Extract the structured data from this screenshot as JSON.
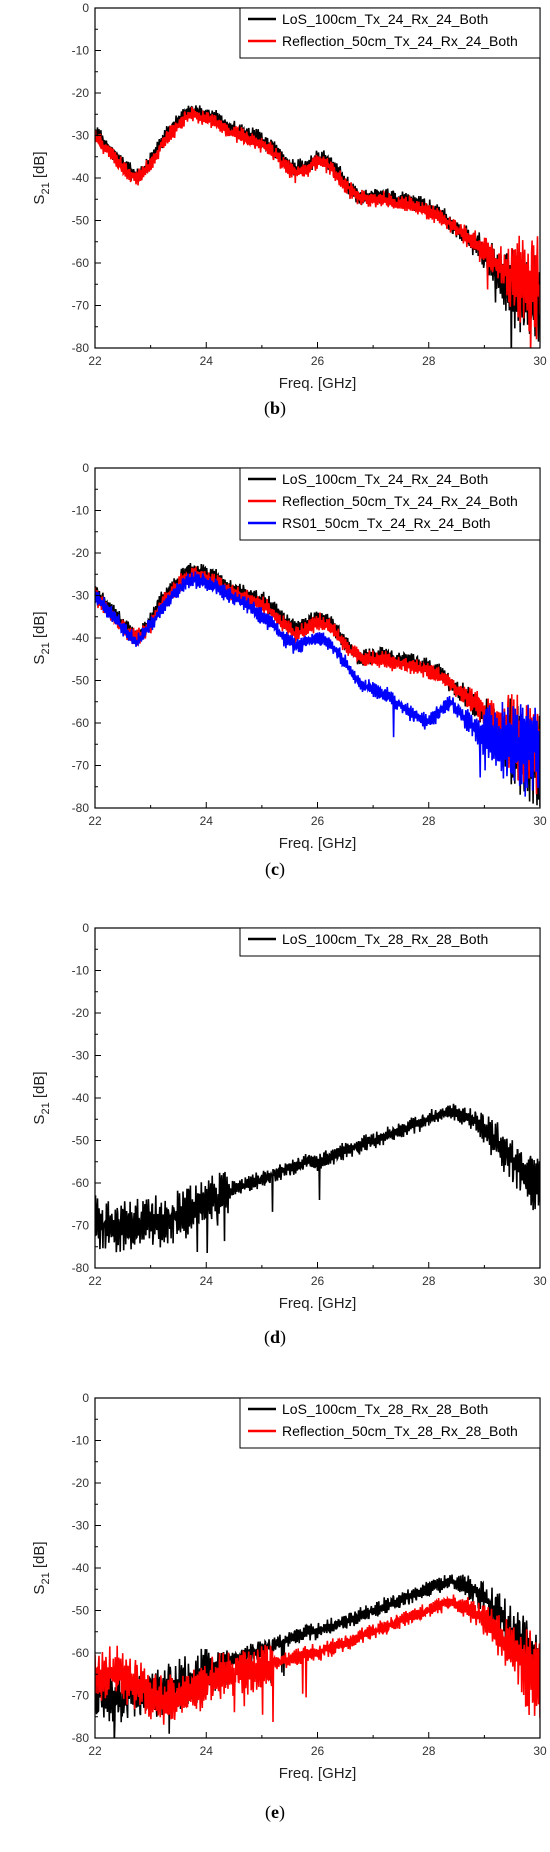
{
  "chart_data": [
    {
      "type": "line",
      "panel_label": "b",
      "xlabel": "Freq. [GHz]",
      "ylabel": "S21 [dB]",
      "ylabel_main": "S",
      "ylabel_sub": "21",
      "ylabel_unit": " [dB]",
      "xlim": [
        22,
        30
      ],
      "ylim": [
        -80,
        0
      ],
      "xticks": [
        22,
        24,
        26,
        28,
        30
      ],
      "yticks": [
        0,
        -10,
        -20,
        -30,
        -40,
        -50,
        -60,
        -70,
        -80
      ],
      "grid": false,
      "legend_position": "top-right",
      "series": [
        {
          "name": "LoS_100cm_Tx_24_Rx_24_Both",
          "color": "#000000",
          "x": [
            22.0,
            22.2,
            22.4,
            22.6,
            22.75,
            23.0,
            23.2,
            23.4,
            23.6,
            23.75,
            24.0,
            24.2,
            24.4,
            24.6,
            24.8,
            25.0,
            25.2,
            25.4,
            25.6,
            25.8,
            26.0,
            26.2,
            26.4,
            26.6,
            26.8,
            27.0,
            27.2,
            27.4,
            27.6,
            27.8,
            28.0,
            28.2,
            28.4,
            28.6,
            28.8,
            29.0,
            29.2,
            29.4,
            29.6,
            29.8,
            30.0
          ],
          "y": [
            -29,
            -32,
            -35,
            -38,
            -40,
            -36,
            -31,
            -28,
            -25,
            -24,
            -25,
            -26,
            -28,
            -29,
            -30,
            -31,
            -33,
            -36,
            -38,
            -37,
            -35,
            -36,
            -39,
            -43,
            -45,
            -44,
            -44,
            -45,
            -45,
            -46,
            -47,
            -48,
            -51,
            -53,
            -55,
            -58,
            -61,
            -64,
            -66,
            -68,
            -70
          ]
        },
        {
          "name": "Reflection_50cm_Tx_24_Rx_24_Both",
          "color": "#ff0000",
          "x": [
            22.0,
            22.2,
            22.4,
            22.6,
            22.75,
            23.0,
            23.2,
            23.4,
            23.6,
            23.75,
            24.0,
            24.2,
            24.4,
            24.6,
            24.8,
            25.0,
            25.2,
            25.4,
            25.6,
            25.8,
            26.0,
            26.2,
            26.4,
            26.6,
            26.8,
            27.0,
            27.2,
            27.4,
            27.6,
            27.8,
            28.0,
            28.2,
            28.4,
            28.6,
            28.8,
            29.0,
            29.2,
            29.4,
            29.6,
            29.8,
            30.0
          ],
          "y": [
            -30,
            -33,
            -36,
            -39,
            -40,
            -37,
            -32,
            -29,
            -26,
            -25,
            -26,
            -27,
            -29,
            -30,
            -31,
            -32,
            -34,
            -37,
            -39,
            -38,
            -36,
            -37,
            -40,
            -43,
            -45,
            -45,
            -45,
            -46,
            -46,
            -47,
            -48,
            -49,
            -51,
            -53,
            -55,
            -57,
            -60,
            -62,
            -64,
            -65,
            -66
          ]
        }
      ]
    },
    {
      "type": "line",
      "panel_label": "c",
      "xlabel": "Freq. [GHz]",
      "ylabel": "S21 [dB]",
      "ylabel_main": "S",
      "ylabel_sub": "21",
      "ylabel_unit": " [dB]",
      "xlim": [
        22,
        30
      ],
      "ylim": [
        -80,
        0
      ],
      "xticks": [
        22,
        24,
        26,
        28,
        30
      ],
      "yticks": [
        0,
        -10,
        -20,
        -30,
        -40,
        -50,
        -60,
        -70,
        -80
      ],
      "grid": false,
      "legend_position": "top-right",
      "series": [
        {
          "name": "LoS_100cm_Tx_24_Rx_24_Both",
          "color": "#000000",
          "x": [
            22.0,
            22.2,
            22.4,
            22.6,
            22.75,
            23.0,
            23.2,
            23.4,
            23.6,
            23.75,
            24.0,
            24.2,
            24.4,
            24.6,
            24.8,
            25.0,
            25.2,
            25.4,
            25.6,
            25.8,
            26.0,
            26.2,
            26.4,
            26.6,
            26.8,
            27.0,
            27.2,
            27.4,
            27.6,
            27.8,
            28.0,
            28.2,
            28.4,
            28.6,
            28.8,
            29.0,
            29.2,
            29.4,
            29.6,
            29.8,
            30.0
          ],
          "y": [
            -29,
            -32,
            -35,
            -38,
            -40,
            -36,
            -31,
            -28,
            -25,
            -24,
            -25,
            -26,
            -28,
            -29,
            -30,
            -31,
            -33,
            -36,
            -38,
            -37,
            -35,
            -36,
            -39,
            -43,
            -45,
            -44,
            -44,
            -45,
            -45,
            -46,
            -47,
            -48,
            -51,
            -53,
            -55,
            -58,
            -61,
            -64,
            -66,
            -68,
            -70
          ]
        },
        {
          "name": "Reflection_50cm_Tx_24_Rx_24_Both",
          "color": "#ff0000",
          "x": [
            22.0,
            22.2,
            22.4,
            22.6,
            22.75,
            23.0,
            23.2,
            23.4,
            23.6,
            23.75,
            24.0,
            24.2,
            24.4,
            24.6,
            24.8,
            25.0,
            25.2,
            25.4,
            25.6,
            25.8,
            26.0,
            26.2,
            26.4,
            26.6,
            26.8,
            27.0,
            27.2,
            27.4,
            27.6,
            27.8,
            28.0,
            28.2,
            28.4,
            28.6,
            28.8,
            29.0,
            29.2,
            29.4,
            29.6,
            29.8,
            30.0
          ],
          "y": [
            -30,
            -33,
            -36,
            -39,
            -40,
            -37,
            -32,
            -29,
            -26,
            -25,
            -26,
            -27,
            -29,
            -30,
            -31,
            -32,
            -34,
            -37,
            -39,
            -38,
            -36,
            -37,
            -40,
            -43,
            -45,
            -45,
            -45,
            -46,
            -46,
            -47,
            -48,
            -49,
            -51,
            -53,
            -55,
            -57,
            -60,
            -62,
            -64,
            -65,
            -66
          ]
        },
        {
          "name": "RS01_50cm_Tx_24_Rx_24_Both",
          "color": "#0000ff",
          "x": [
            22.0,
            22.2,
            22.4,
            22.6,
            22.75,
            23.0,
            23.2,
            23.4,
            23.6,
            23.75,
            24.0,
            24.2,
            24.4,
            24.6,
            24.8,
            25.0,
            25.2,
            25.4,
            25.6,
            25.8,
            26.0,
            26.2,
            26.4,
            26.6,
            26.8,
            27.0,
            27.2,
            27.4,
            27.6,
            27.8,
            28.0,
            28.2,
            28.4,
            28.6,
            28.8,
            29.0,
            29.2,
            29.4,
            29.6,
            29.8,
            30.0
          ],
          "y": [
            -30,
            -33,
            -36,
            -39,
            -41,
            -37,
            -33,
            -30,
            -27,
            -26,
            -27,
            -28,
            -30,
            -31,
            -33,
            -35,
            -37,
            -40,
            -42,
            -41,
            -40,
            -41,
            -44,
            -48,
            -51,
            -52,
            -53,
            -55,
            -57,
            -59,
            -60,
            -57,
            -55,
            -58,
            -61,
            -63,
            -64,
            -65,
            -66,
            -66,
            -66
          ]
        }
      ]
    },
    {
      "type": "line",
      "panel_label": "d",
      "xlabel": "Freq. [GHz]",
      "ylabel": "S21 [dB]",
      "ylabel_main": "S",
      "ylabel_sub": "21",
      "ylabel_unit": " [dB]",
      "xlim": [
        22,
        30
      ],
      "ylim": [
        -80,
        0
      ],
      "xticks": [
        22,
        24,
        26,
        28,
        30
      ],
      "yticks": [
        0,
        -10,
        -20,
        -30,
        -40,
        -50,
        -60,
        -70,
        -80
      ],
      "grid": false,
      "legend_position": "top-right",
      "series": [
        {
          "name": "LoS_100cm_Tx_28_Rx_28_Both",
          "color": "#000000",
          "x": [
            22.0,
            22.2,
            22.4,
            22.6,
            22.8,
            23.0,
            23.2,
            23.4,
            23.6,
            23.8,
            24.0,
            24.2,
            24.4,
            24.6,
            24.8,
            25.0,
            25.2,
            25.4,
            25.6,
            25.8,
            26.0,
            26.2,
            26.4,
            26.6,
            26.8,
            27.0,
            27.2,
            27.4,
            27.6,
            27.8,
            28.0,
            28.2,
            28.4,
            28.6,
            28.8,
            29.0,
            29.2,
            29.4,
            29.6,
            29.8,
            30.0
          ],
          "y": [
            -69,
            -70,
            -71,
            -70,
            -70,
            -69,
            -69,
            -68,
            -67,
            -66,
            -64,
            -63,
            -62,
            -61,
            -60,
            -59,
            -58,
            -57,
            -56,
            -55,
            -55,
            -54,
            -53,
            -52,
            -51,
            -50,
            -49,
            -48,
            -47,
            -46,
            -45,
            -44,
            -43,
            -44,
            -45,
            -47,
            -50,
            -53,
            -56,
            -59,
            -62
          ]
        }
      ]
    },
    {
      "type": "line",
      "panel_label": "e",
      "xlabel": "Freq. [GHz]",
      "ylabel": "S21 [dB]",
      "ylabel_main": "S",
      "ylabel_sub": "21",
      "ylabel_unit": " [dB]",
      "xlim": [
        22,
        30
      ],
      "ylim": [
        -80,
        0
      ],
      "xticks": [
        22,
        24,
        26,
        28,
        30
      ],
      "yticks": [
        0,
        -10,
        -20,
        -30,
        -40,
        -50,
        -60,
        -70,
        -80
      ],
      "grid": false,
      "legend_position": "top-right",
      "series": [
        {
          "name": "LoS_100cm_Tx_28_Rx_28_Both",
          "color": "#000000",
          "x": [
            22.0,
            22.2,
            22.4,
            22.6,
            22.8,
            23.0,
            23.2,
            23.4,
            23.6,
            23.8,
            24.0,
            24.2,
            24.4,
            24.6,
            24.8,
            25.0,
            25.2,
            25.4,
            25.6,
            25.8,
            26.0,
            26.2,
            26.4,
            26.6,
            26.8,
            27.0,
            27.2,
            27.4,
            27.6,
            27.8,
            28.0,
            28.2,
            28.4,
            28.6,
            28.8,
            29.0,
            29.2,
            29.4,
            29.6,
            29.8,
            30.0
          ],
          "y": [
            -69,
            -70,
            -71,
            -70,
            -70,
            -69,
            -69,
            -68,
            -67,
            -66,
            -64,
            -63,
            -62,
            -61,
            -60,
            -59,
            -58,
            -57,
            -56,
            -55,
            -55,
            -54,
            -53,
            -52,
            -51,
            -50,
            -49,
            -48,
            -47,
            -46,
            -45,
            -44,
            -43,
            -44,
            -45,
            -47,
            -50,
            -53,
            -56,
            -59,
            -62
          ]
        },
        {
          "name": "Reflection_50cm_Tx_28_Rx_28_Both",
          "color": "#ff0000",
          "x": [
            22.0,
            22.2,
            22.4,
            22.6,
            22.8,
            23.0,
            23.2,
            23.4,
            23.6,
            23.8,
            24.0,
            24.2,
            24.4,
            24.6,
            24.8,
            25.0,
            25.2,
            25.4,
            25.6,
            25.8,
            26.0,
            26.2,
            26.4,
            26.6,
            26.8,
            27.0,
            27.2,
            27.4,
            27.6,
            27.8,
            28.0,
            28.2,
            28.4,
            28.6,
            28.8,
            29.0,
            29.2,
            29.4,
            29.6,
            29.8,
            30.0
          ],
          "y": [
            -66,
            -65,
            -64,
            -66,
            -68,
            -70,
            -71,
            -71,
            -70,
            -69,
            -67,
            -66,
            -65,
            -64,
            -64,
            -63,
            -62,
            -62,
            -61,
            -60,
            -60,
            -59,
            -58,
            -57,
            -56,
            -55,
            -54,
            -53,
            -52,
            -51,
            -50,
            -49,
            -48,
            -49,
            -50,
            -52,
            -55,
            -58,
            -61,
            -64,
            -67
          ]
        }
      ]
    }
  ]
}
